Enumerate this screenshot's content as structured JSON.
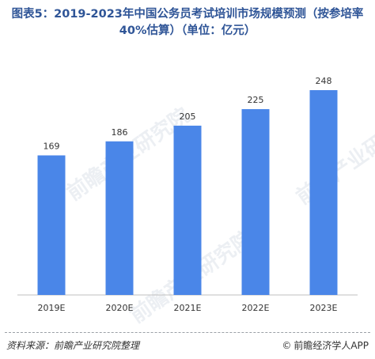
{
  "title": "图表5：2019-2023年中国公务员考试培训市场规模预测（按参培率40%估算）（单位：亿元）",
  "source": "资料来源：前瞻产业研究院整理",
  "brand": "前瞻经济学人APP",
  "watermark_text": "前瞻产业研究院",
  "chart_data": {
    "type": "bar",
    "categories": [
      "2019E",
      "2020E",
      "2021E",
      "2022E",
      "2023E"
    ],
    "values": [
      169,
      186,
      205,
      225,
      248
    ],
    "data_labels": [
      "169",
      "186",
      "205",
      "225",
      "248"
    ],
    "title": "图表5：2019-2023年中国公务员考试培训市场规模预测（按参培率40%估算）（单位：亿元）",
    "xlabel": "",
    "ylabel": "",
    "ylim": [
      0,
      260
    ],
    "grid": false,
    "bar_color": "#4a86e8"
  }
}
